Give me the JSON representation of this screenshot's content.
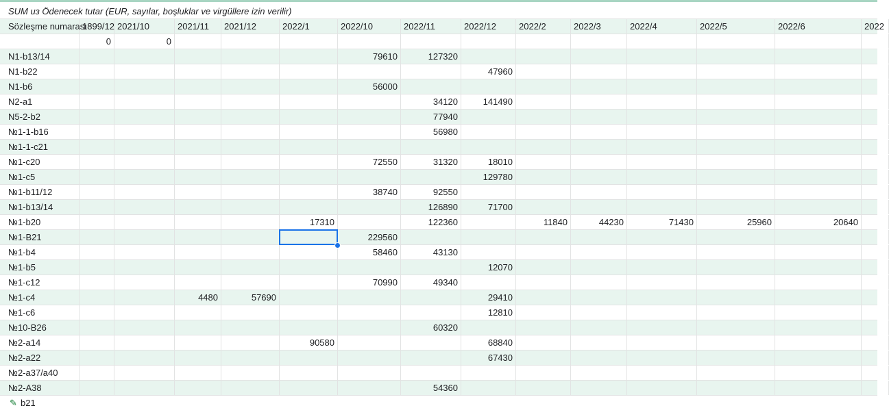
{
  "sheet": {
    "title": "SUM из Ödenecek tutar (EUR, sayılar, boşluklar ve virgüllere izin verilir)",
    "header_row": [
      "Sözleşme numarası",
      "1899/12",
      "2021/10",
      "2021/11",
      "2021/12",
      "2022/1",
      "2022/10",
      "2022/11",
      "2022/12",
      "2022/2",
      "2022/3",
      "2022/4",
      "2022/5",
      "2022/6",
      "2022"
    ],
    "rows": [
      [
        "",
        "0",
        "0",
        "",
        "",
        "",
        "",
        "",
        "",
        "",
        "",
        "",
        "",
        "",
        ""
      ],
      [
        "N1-b13/14",
        "",
        "",
        "",
        "",
        "",
        "79610",
        "127320",
        "",
        "",
        "",
        "",
        "",
        "",
        ""
      ],
      [
        "N1-b22",
        "",
        "",
        "",
        "",
        "",
        "",
        "",
        "47960",
        "",
        "",
        "",
        "",
        "",
        ""
      ],
      [
        "N1-b6",
        "",
        "",
        "",
        "",
        "",
        "56000",
        "",
        "",
        "",
        "",
        "",
        "",
        "",
        ""
      ],
      [
        "N2-a1",
        "",
        "",
        "",
        "",
        "",
        "",
        "34120",
        "141490",
        "",
        "",
        "",
        "",
        "",
        ""
      ],
      [
        "N5-2-b2",
        "",
        "",
        "",
        "",
        "",
        "",
        "77940",
        "",
        "",
        "",
        "",
        "",
        "",
        ""
      ],
      [
        "№1-1-b16",
        "",
        "",
        "",
        "",
        "",
        "",
        "56980",
        "",
        "",
        "",
        "",
        "",
        "",
        ""
      ],
      [
        "№1-1-c21",
        "",
        "",
        "",
        "",
        "",
        "",
        "",
        "",
        "",
        "",
        "",
        "",
        "",
        ""
      ],
      [
        "№1-c20",
        "",
        "",
        "",
        "",
        "",
        "72550",
        "31320",
        "18010",
        "",
        "",
        "",
        "",
        "",
        ""
      ],
      [
        "№1-c5",
        "",
        "",
        "",
        "",
        "",
        "",
        "",
        "129780",
        "",
        "",
        "",
        "",
        "",
        ""
      ],
      [
        "№1-b11/12",
        "",
        "",
        "",
        "",
        "",
        "38740",
        "92550",
        "",
        "",
        "",
        "",
        "",
        "",
        ""
      ],
      [
        "№1-b13/14",
        "",
        "",
        "",
        "",
        "",
        "",
        "126890",
        "71700",
        "",
        "",
        "",
        "",
        "",
        ""
      ],
      [
        "№1-b20",
        "",
        "",
        "",
        "",
        "17310",
        "",
        "122360",
        "",
        "11840",
        "44230",
        "71430",
        "25960",
        "20640",
        ""
      ],
      [
        "№1-B21",
        "",
        "",
        "",
        "",
        "",
        "229560",
        "",
        "",
        "",
        "",
        "",
        "",
        "",
        ""
      ],
      [
        "№1-b4",
        "",
        "",
        "",
        "",
        "",
        "58460",
        "43130",
        "",
        "",
        "",
        "",
        "",
        "",
        ""
      ],
      [
        "№1-b5",
        "",
        "",
        "",
        "",
        "",
        "",
        "",
        "12070",
        "",
        "",
        "",
        "",
        "",
        ""
      ],
      [
        "№1-c12",
        "",
        "",
        "",
        "",
        "",
        "70990",
        "49340",
        "",
        "",
        "",
        "",
        "",
        "",
        ""
      ],
      [
        "№1-c4",
        "",
        "",
        "4480",
        "57690",
        "",
        "",
        "",
        "29410",
        "",
        "",
        "",
        "",
        "",
        ""
      ],
      [
        "№1-c6",
        "",
        "",
        "",
        "",
        "",
        "",
        "",
        "12810",
        "",
        "",
        "",
        "",
        "",
        ""
      ],
      [
        "№10-B26",
        "",
        "",
        "",
        "",
        "",
        "",
        "60320",
        "",
        "",
        "",
        "",
        "",
        "",
        ""
      ],
      [
        "№2-a14",
        "",
        "",
        "",
        "",
        "90580",
        "",
        "",
        "68840",
        "",
        "",
        "",
        "",
        "",
        ""
      ],
      [
        "№2-a22",
        "",
        "",
        "",
        "",
        "",
        "",
        "",
        "67430",
        "",
        "",
        "",
        "",
        "",
        ""
      ],
      [
        "№2-a37/a40",
        "",
        "",
        "",
        "",
        "",
        "",
        "",
        "",
        "",
        "",
        "",
        "",
        "",
        ""
      ],
      [
        "№2-A38",
        "",
        "",
        "",
        "",
        "",
        "",
        "54360",
        "",
        "",
        "",
        "",
        "",
        "",
        ""
      ]
    ],
    "partial_bottom_label": "b21",
    "pencil_icon": "pencil-icon",
    "colors": {
      "band": "#e8f5ef",
      "grid_line": "#e2e3e3",
      "selection": "#1a73e8",
      "top_accent": "#a8d5c2"
    }
  }
}
